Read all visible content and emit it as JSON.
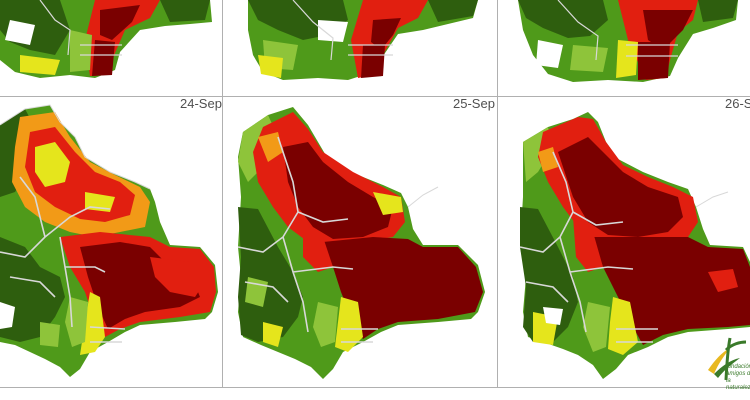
{
  "panels": [
    {
      "date": "",
      "row": 0,
      "col": 0
    },
    {
      "date": "",
      "row": 0,
      "col": 1
    },
    {
      "date": "",
      "row": 0,
      "col": 2
    },
    {
      "date": "24-Sep",
      "row": 1,
      "col": 0
    },
    {
      "date": "25-Sep",
      "row": 1,
      "col": 1
    },
    {
      "date": "26-S",
      "row": 1,
      "col": 2
    }
  ],
  "colors": {
    "dark_green": "#2e5e0e",
    "green": "#4f9a1a",
    "light_green": "#8ec43a",
    "yellow": "#e5e51c",
    "orange": "#f29a17",
    "red": "#e11f10",
    "dark_red": "#7a0000",
    "boundary": "#d8d8d8"
  },
  "logo": {
    "icon": "fan-logo-icon",
    "mark": "fan",
    "caption": "fundación amigos de la naturaleza"
  }
}
